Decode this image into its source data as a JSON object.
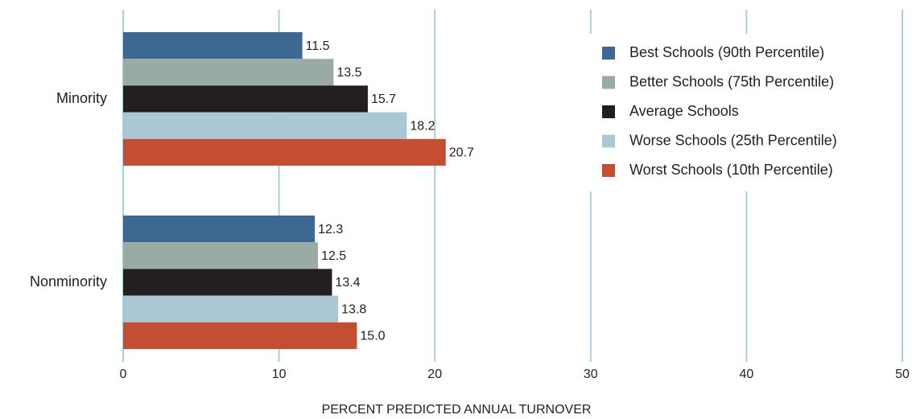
{
  "chart_data": {
    "type": "barh",
    "x_label": "PERCENT PREDICTED ANNUAL TURNOVER",
    "categories": [
      "Minority",
      "Nonminority"
    ],
    "series": [
      {
        "name": "Best Schools (90th Percentile)",
        "color": "#3d6891",
        "values": [
          11.5,
          12.3
        ],
        "value_labels": [
          "11.5",
          "12.3"
        ]
      },
      {
        "name": "Better Schools (75th Percentile)",
        "color": "#9aaba3",
        "values": [
          13.5,
          12.5
        ],
        "value_labels": [
          "13.5",
          "12.5"
        ]
      },
      {
        "name": "Average Schools",
        "color": "#231f20",
        "values": [
          15.7,
          13.4
        ],
        "value_labels": [
          "15.7",
          "13.4"
        ]
      },
      {
        "name": "Worse Schools (25th Percentile)",
        "color": "#a9c8d3",
        "values": [
          18.2,
          13.8
        ],
        "value_labels": [
          "18.2",
          "13.8"
        ]
      },
      {
        "name": "Worst Schools (10th Percentile)",
        "color": "#c44e32",
        "values": [
          20.7,
          15.0
        ],
        "value_labels": [
          "20.7",
          "15.0"
        ]
      }
    ],
    "xlim": [
      0,
      50
    ],
    "xticks": [
      0,
      10,
      20,
      30,
      40,
      50
    ],
    "grid": true,
    "legend": "upper right"
  }
}
